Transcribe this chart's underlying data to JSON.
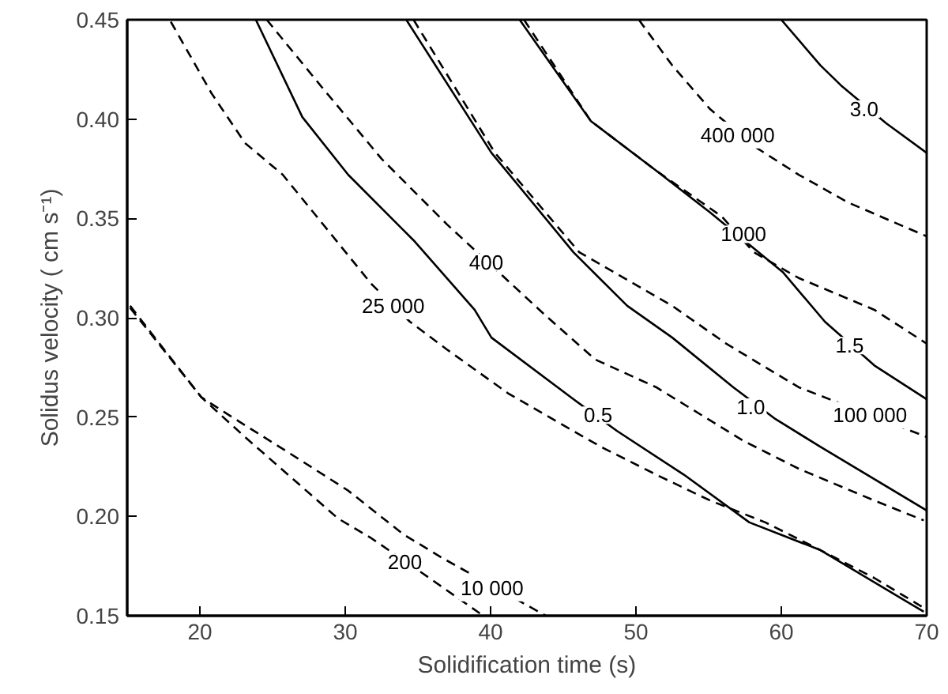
{
  "chart_data": {
    "type": "line",
    "xlabel": "Solidification time (s)",
    "ylabel": "Solidus velocity ( cm s⁻¹)",
    "xlim": [
      15,
      70
    ],
    "ylim": [
      0.15,
      0.45
    ],
    "xticks": [
      20,
      30,
      40,
      50,
      60,
      70
    ],
    "yticks": [
      {
        "value": 0.15,
        "label": "0.15"
      },
      {
        "value": 0.2,
        "label": "0.20"
      },
      {
        "value": 0.25,
        "label": "0.25"
      },
      {
        "value": 0.3,
        "label": "0.30"
      },
      {
        "value": 0.35,
        "label": "0.35"
      },
      {
        "value": 0.4,
        "label": "0.40"
      },
      {
        "value": 0.45,
        "label": "0.45"
      }
    ],
    "grid": false,
    "series": [
      {
        "color": "#000000",
        "line_style": "dashed",
        "x": [
          15.2,
          20.1,
          23.1,
          29.5,
          31.8,
          35.2,
          39.3
        ],
        "values": [
          0.305,
          0.26,
          0.24,
          0.199,
          0.189,
          0.172,
          0.151
        ]
      },
      {
        "color": "#000000",
        "line_style": "dashed",
        "x": [
          15.2,
          20.1,
          22.0,
          25.7,
          30.2,
          34.0,
          36.7,
          43.8
        ],
        "values": [
          0.306,
          0.26,
          0.251,
          0.234,
          0.213,
          0.191,
          0.179,
          0.15
        ]
      },
      {
        "color": "#000000",
        "line_style": "dashed",
        "x": [
          18.0,
          20.8,
          23.1,
          25.7,
          28.7,
          31.8,
          34.45,
          37.0,
          41.2,
          43.8,
          47.6,
          51.4,
          55.1,
          58.9,
          62.7,
          66.4,
          69.8
        ],
        "values": [
          0.449,
          0.413,
          0.388,
          0.372,
          0.345,
          0.317,
          0.298,
          0.284,
          0.262,
          0.251,
          0.235,
          0.221,
          0.208,
          0.197,
          0.183,
          0.169,
          0.154
        ]
      },
      {
        "color": "#000000",
        "line_style": "solid",
        "x": [
          23.85,
          27.05,
          30.2,
          34.7,
          38.9,
          40.06,
          45.7,
          48.7,
          53.3,
          57.8,
          62.7,
          69.8
        ],
        "values": [
          0.45,
          0.401,
          0.372,
          0.339,
          0.304,
          0.29,
          0.259,
          0.243,
          0.221,
          0.197,
          0.183,
          0.152
        ]
      },
      {
        "color": "#000000",
        "line_style": "dashed",
        "x": [
          24.6,
          28.4,
          32.5,
          37.0,
          43.8,
          47.2,
          51.4,
          57.4,
          61.2,
          66.4,
          69.8
        ],
        "values": [
          0.45,
          0.416,
          0.38,
          0.347,
          0.301,
          0.279,
          0.265,
          0.238,
          0.224,
          0.208,
          0.198
        ]
      },
      {
        "color": "#000000",
        "line_style": "solid",
        "x": [
          34.2,
          40.06,
          45.7,
          49.4,
          52.5,
          56.7,
          59.6,
          62.7,
          70
        ],
        "values": [
          0.45,
          0.383,
          0.333,
          0.306,
          0.29,
          0.265,
          0.249,
          0.235,
          0.203
        ]
      },
      {
        "color": "#000000",
        "line_style": "dashed",
        "x": [
          34.7,
          40.3,
          46.1,
          52.5,
          56.2,
          61.2,
          70
        ],
        "values": [
          0.45,
          0.383,
          0.333,
          0.306,
          0.287,
          0.265,
          0.24
        ]
      },
      {
        "color": "#000000",
        "line_style": "solid",
        "x": [
          42.0,
          46.9,
          51.4,
          55.1,
          60.1,
          63.0,
          66.4,
          70
        ],
        "values": [
          0.45,
          0.399,
          0.374,
          0.353,
          0.323,
          0.298,
          0.276,
          0.259
        ]
      },
      {
        "color": "#000000",
        "line_style": "dashed",
        "x": [
          42.3,
          46.9,
          51.4,
          55.9,
          58.1,
          61.2,
          66.4,
          70
        ],
        "values": [
          0.45,
          0.399,
          0.374,
          0.351,
          0.333,
          0.32,
          0.304,
          0.287
        ]
      },
      {
        "color": "#000000",
        "line_style": "dashed",
        "x": [
          50.2,
          52.5,
          55.1,
          58.2,
          61.2,
          64.6,
          70
        ],
        "values": [
          0.45,
          0.427,
          0.405,
          0.386,
          0.372,
          0.358,
          0.341
        ]
      },
      {
        "color": "#000000",
        "line_style": "solid",
        "x": [
          60.0,
          62.7,
          64.1,
          67.2,
          70
        ],
        "values": [
          0.45,
          0.427,
          0.417,
          0.398,
          0.383
        ]
      }
    ],
    "annotations": [
      {
        "text": "200",
        "x": 34.1,
        "y": 0.177
      },
      {
        "text": "10 000",
        "x": 40.1,
        "y": 0.164
      },
      {
        "text": "25 000",
        "x": 33.3,
        "y": 0.306
      },
      {
        "text": "400",
        "x": 39.7,
        "y": 0.328
      },
      {
        "text": "0.5",
        "x": 47.4,
        "y": 0.251
      },
      {
        "text": "1.0",
        "x": 57.9,
        "y": 0.255
      },
      {
        "text": "1.5",
        "x": 64.7,
        "y": 0.286
      },
      {
        "text": "100 000",
        "x": 66.1,
        "y": 0.251
      },
      {
        "text": "1000",
        "x": 57.4,
        "y": 0.342
      },
      {
        "text": "400 000",
        "x": 57.0,
        "y": 0.392
      },
      {
        "text": "3.0",
        "x": 65.7,
        "y": 0.405
      }
    ]
  }
}
